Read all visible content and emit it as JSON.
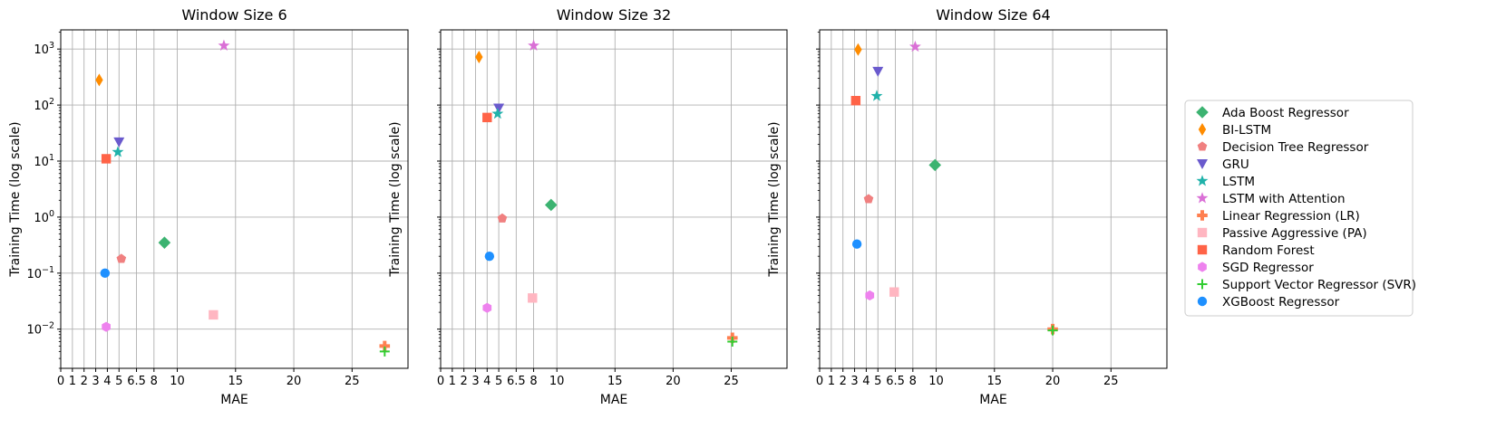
{
  "chart_data": [
    {
      "type": "scatter",
      "title": "Window Size 6",
      "xlabel": "MAE",
      "ylabel": "Training Time (log scale)",
      "yscale": "log",
      "xlim": [
        0,
        29.8
      ],
      "ylim": [
        0.002,
        2200
      ],
      "xticks": [
        0,
        1,
        2,
        3,
        4,
        5,
        6.5,
        8,
        10,
        15,
        20,
        25
      ],
      "xtick_labels": [
        "0",
        "1",
        "2",
        "3",
        "4",
        "5",
        "6.5",
        "8",
        "10",
        "15",
        "20",
        "25"
      ],
      "yticks": [
        0.01,
        0.1,
        1,
        10,
        100,
        1000
      ],
      "ytick_labels": [
        "10",
        "10",
        "10",
        "10",
        "10",
        "10"
      ],
      "ytick_exponents": [
        "−2",
        "−1",
        "0",
        "1",
        "2",
        "3"
      ],
      "grid": true,
      "points": [
        {
          "series": "Ada Boost Regressor",
          "x": 8.9,
          "y": 0.35
        },
        {
          "series": "BI-LSTM",
          "x": 3.3,
          "y": 280
        },
        {
          "series": "Decision Tree Regressor",
          "x": 5.2,
          "y": 0.18
        },
        {
          "series": "GRU",
          "x": 5.0,
          "y": 22
        },
        {
          "series": "LSTM",
          "x": 4.9,
          "y": 14.5
        },
        {
          "series": "LSTM with Attention",
          "x": 14.0,
          "y": 1150
        },
        {
          "series": "Linear Regression (LR)",
          "x": 27.8,
          "y": 0.005
        },
        {
          "series": "Passive Aggressive (PA)",
          "x": 13.1,
          "y": 0.018
        },
        {
          "series": "Random Forest",
          "x": 3.9,
          "y": 11
        },
        {
          "series": "SGD Regressor",
          "x": 3.9,
          "y": 0.011
        },
        {
          "series": "Support Vector Regressor (SVR)",
          "x": 27.8,
          "y": 0.004
        },
        {
          "series": "XGBoost Regressor",
          "x": 3.8,
          "y": 0.1
        }
      ]
    },
    {
      "type": "scatter",
      "title": "Window Size 32",
      "xlabel": "MAE",
      "ylabel": "Training Time (log scale)",
      "yscale": "log",
      "xlim": [
        0,
        29.8
      ],
      "ylim": [
        0.002,
        2200
      ],
      "xticks": [
        0,
        1,
        2,
        3,
        4,
        5,
        6.5,
        8,
        10,
        15,
        20,
        25
      ],
      "xtick_labels": [
        "0",
        "1",
        "2",
        "3",
        "4",
        "5",
        "6.5",
        "8",
        "10",
        "15",
        "20",
        "25"
      ],
      "yticks": [
        0.01,
        0.1,
        1,
        10,
        100,
        1000
      ],
      "ytick_labels": [
        "",
        "",
        "",
        "",
        "",
        ""
      ],
      "ytick_exponents": [
        "",
        "",
        "",
        "",
        "",
        ""
      ],
      "grid": true,
      "points": [
        {
          "series": "Ada Boost Regressor",
          "x": 9.5,
          "y": 1.65
        },
        {
          "series": "BI-LSTM",
          "x": 3.3,
          "y": 720
        },
        {
          "series": "Decision Tree Regressor",
          "x": 5.3,
          "y": 0.95
        },
        {
          "series": "GRU",
          "x": 5.0,
          "y": 88
        },
        {
          "series": "LSTM",
          "x": 4.9,
          "y": 70
        },
        {
          "series": "LSTM with Attention",
          "x": 8.0,
          "y": 1150
        },
        {
          "series": "Linear Regression (LR)",
          "x": 25.1,
          "y": 0.007
        },
        {
          "series": "Passive Aggressive (PA)",
          "x": 7.9,
          "y": 0.036
        },
        {
          "series": "Random Forest",
          "x": 4.0,
          "y": 60
        },
        {
          "series": "SGD Regressor",
          "x": 4.0,
          "y": 0.024
        },
        {
          "series": "Support Vector Regressor (SVR)",
          "x": 25.1,
          "y": 0.006
        },
        {
          "series": "XGBoost Regressor",
          "x": 4.2,
          "y": 0.2
        }
      ]
    },
    {
      "type": "scatter",
      "title": "Window Size 64",
      "xlabel": "MAE",
      "ylabel": "Training Time (log scale)",
      "yscale": "log",
      "xlim": [
        0,
        29.8
      ],
      "ylim": [
        0.002,
        2200
      ],
      "xticks": [
        0,
        1,
        2,
        3,
        4,
        5,
        6.5,
        8,
        10,
        15,
        20,
        25
      ],
      "xtick_labels": [
        "0",
        "1",
        "2",
        "3",
        "4",
        "5",
        "6.5",
        "8",
        "10",
        "15",
        "20",
        "25"
      ],
      "yticks": [
        0.01,
        0.1,
        1,
        10,
        100,
        1000
      ],
      "ytick_labels": [
        "",
        "",
        "",
        "",
        "",
        ""
      ],
      "ytick_exponents": [
        "",
        "",
        "",
        "",
        "",
        ""
      ],
      "grid": true,
      "points": [
        {
          "series": "Ada Boost Regressor",
          "x": 9.9,
          "y": 8.5
        },
        {
          "series": "BI-LSTM",
          "x": 3.3,
          "y": 980
        },
        {
          "series": "Decision Tree Regressor",
          "x": 4.2,
          "y": 2.1
        },
        {
          "series": "GRU",
          "x": 5.0,
          "y": 400
        },
        {
          "series": "LSTM",
          "x": 4.9,
          "y": 145
        },
        {
          "series": "LSTM with Attention",
          "x": 8.2,
          "y": 1100
        },
        {
          "series": "Linear Regression (LR)",
          "x": 20.0,
          "y": 0.01
        },
        {
          "series": "Passive Aggressive (PA)",
          "x": 6.4,
          "y": 0.046
        },
        {
          "series": "Random Forest",
          "x": 3.1,
          "y": 120
        },
        {
          "series": "SGD Regressor",
          "x": 4.3,
          "y": 0.04
        },
        {
          "series": "Support Vector Regressor (SVR)",
          "x": 20.0,
          "y": 0.0095
        },
        {
          "series": "XGBoost Regressor",
          "x": 3.2,
          "y": 0.33
        }
      ]
    }
  ],
  "legend": {
    "placement": "right",
    "items": [
      {
        "label": "Ada Boost Regressor",
        "color": "#3cb371",
        "marker": "diamond"
      },
      {
        "label": "BI-LSTM",
        "color": "#ff8c00",
        "marker": "thin-diamond"
      },
      {
        "label": "Decision Tree Regressor",
        "color": "#f08080",
        "marker": "pentagon"
      },
      {
        "label": "GRU",
        "color": "#6a5acd",
        "marker": "triangle-down"
      },
      {
        "label": "LSTM",
        "color": "#20b2aa",
        "marker": "star"
      },
      {
        "label": "LSTM with Attention",
        "color": "#da70d6",
        "marker": "star"
      },
      {
        "label": "Linear Regression (LR)",
        "color": "#ff7f50",
        "marker": "plus-filled"
      },
      {
        "label": "Passive Aggressive (PA)",
        "color": "#ffb6c1",
        "marker": "square"
      },
      {
        "label": "Random Forest",
        "color": "#ff6347",
        "marker": "square"
      },
      {
        "label": "SGD Regressor",
        "color": "#ee82ee",
        "marker": "hexagon"
      },
      {
        "label": "Support Vector Regressor (SVR)",
        "color": "#32cd32",
        "marker": "plus"
      },
      {
        "label": "XGBoost Regressor",
        "color": "#1e90ff",
        "marker": "circle"
      }
    ]
  }
}
